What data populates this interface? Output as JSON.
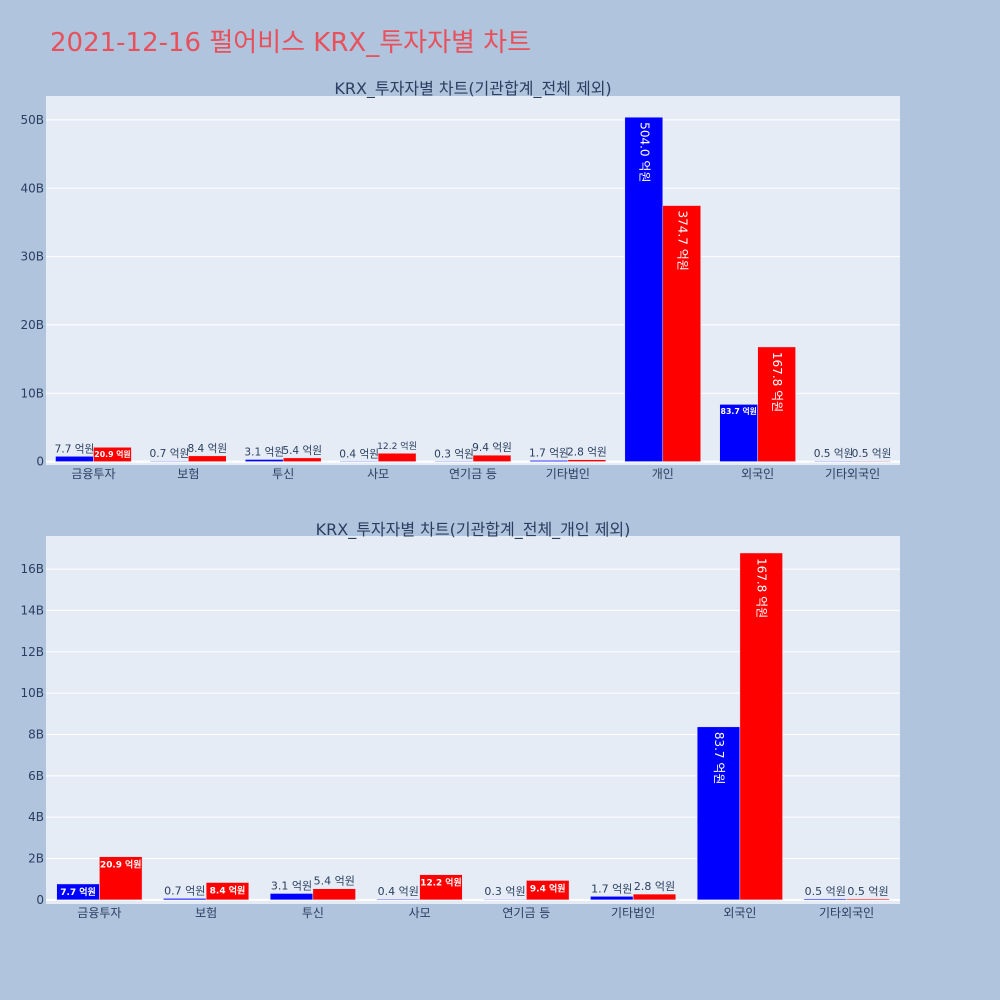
{
  "title": "2021-12-16 펄어비스 KRX_투자자별 차트",
  "colors": {
    "background": "#b0c4de",
    "plot_background": "#e5ecf6",
    "grid": "#ffffff",
    "title": "#e8505b",
    "text": "#2a3f5f",
    "buy": "#0000ff",
    "sell": "#ff0000"
  },
  "chart_data": [
    {
      "type": "bar",
      "title": "KRX_투자자별 차트(기관합계_전체 제외)",
      "categories": [
        "금융투자",
        "보험",
        "투신",
        "사모",
        "연기금 등",
        "기타법인",
        "개인",
        "외국인",
        "기타외국인"
      ],
      "series": [
        {
          "color": "#0000ff",
          "values": [
            0.77,
            0.07,
            0.31,
            0.04,
            0.03,
            0.17,
            50.4,
            8.37,
            0.05
          ],
          "labels": [
            "7.7 억원",
            "0.7 억원",
            "3.1 억원",
            "0.4 억원",
            "0.3 억원",
            "1.7 억원",
            "504.0 억원",
            "83.7 억원",
            "0.5 억원"
          ]
        },
        {
          "color": "#ff0000",
          "values": [
            2.09,
            0.84,
            0.54,
            1.22,
            0.94,
            0.28,
            37.47,
            16.78,
            0.05
          ],
          "labels": [
            "20.9 억원",
            "8.4 억원",
            "5.4 억원",
            "12.2 억원",
            "9.4 억원",
            "2.8 억원",
            "374.7 억원",
            "167.8 억원",
            "0.5 억원"
          ]
        }
      ],
      "yticks": [
        0,
        10,
        20,
        30,
        40,
        50
      ],
      "ytick_labels": [
        "0",
        "10B",
        "20B",
        "30B",
        "40B",
        "50B"
      ],
      "ylim": [
        -0.5,
        53.5
      ],
      "grid": true
    },
    {
      "type": "bar",
      "title": "KRX_투자자별 차트(기관합계_전체_개인 제외)",
      "categories": [
        "금융투자",
        "보험",
        "투신",
        "사모",
        "연기금 등",
        "기타법인",
        "외국인",
        "기타외국인"
      ],
      "series": [
        {
          "color": "#0000ff",
          "values": [
            0.77,
            0.07,
            0.31,
            0.04,
            0.03,
            0.17,
            8.37,
            0.05
          ],
          "labels": [
            "7.7 억원",
            "0.7 억원",
            "3.1 억원",
            "0.4 억원",
            "0.3 억원",
            "1.7 억원",
            "83.7 억원",
            "0.5 억원"
          ]
        },
        {
          "color": "#ff0000",
          "values": [
            2.09,
            0.84,
            0.54,
            1.22,
            0.94,
            0.28,
            16.78,
            0.05
          ],
          "labels": [
            "20.9 억원",
            "8.4 억원",
            "5.4 억원",
            "12.2 억원",
            "9.4 억원",
            "2.8 억원",
            "167.8 억원",
            "0.5 억원"
          ]
        }
      ],
      "yticks": [
        0,
        2,
        4,
        6,
        8,
        10,
        12,
        14,
        16
      ],
      "ytick_labels": [
        "0",
        "2B",
        "4B",
        "6B",
        "8B",
        "10B",
        "12B",
        "14B",
        "16B"
      ],
      "ylim": [
        -0.2,
        17.6
      ],
      "grid": true
    }
  ]
}
